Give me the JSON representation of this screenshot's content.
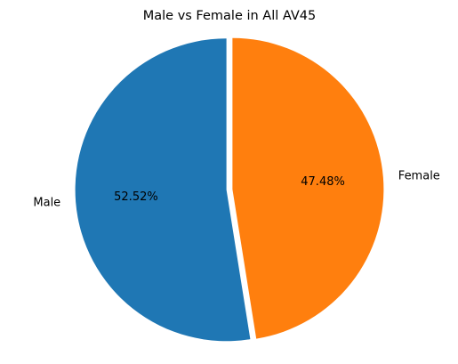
{
  "chart_data": {
    "type": "pie",
    "title": "Male vs Female in All AV45",
    "slices": [
      {
        "label": "Male",
        "value": 52.52,
        "pct_label": "52.52%",
        "color": "#1f77b4"
      },
      {
        "label": "Female",
        "value": 47.48,
        "pct_label": "47.48%",
        "color": "#ff7f0e"
      }
    ],
    "start_angle_deg": 90,
    "direction": "counterclockwise",
    "exploded": true,
    "legend": "none"
  }
}
